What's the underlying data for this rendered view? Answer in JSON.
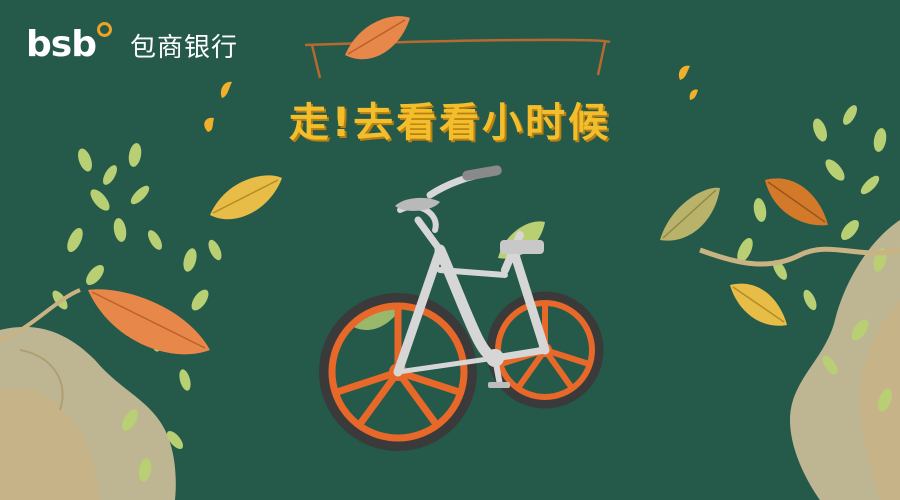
{
  "brand": {
    "latin": "bsb",
    "chinese": "包商银行",
    "accent_color": "#f0a224"
  },
  "headline": {
    "text": "走!去看看小时候",
    "color": "#f3be2c"
  },
  "colors": {
    "background": "#25594a",
    "bike_frame": "#d6d6d6",
    "wheel": "#e8682a",
    "leaf_orange": "#e8874a",
    "leaf_yellow": "#e7bd47",
    "leaf_green": "#b8cf73",
    "watercolor": "#d9c7a0"
  }
}
